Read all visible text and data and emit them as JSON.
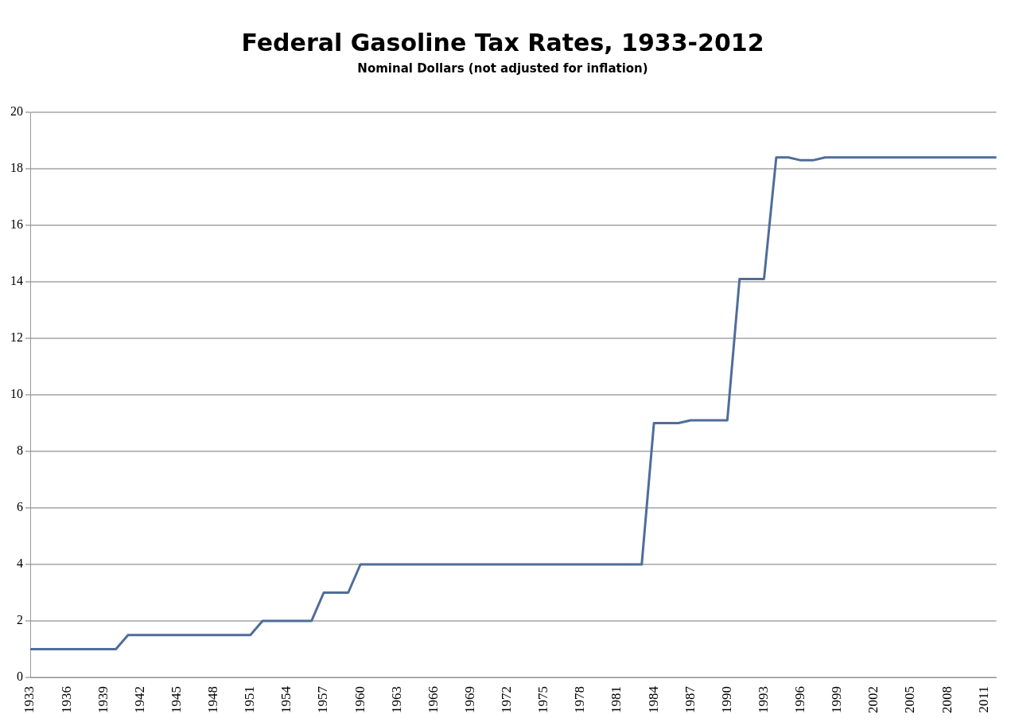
{
  "chart_data": {
    "type": "line",
    "title": "Federal Gasoline Tax Rates, 1933-2012",
    "subtitle": "Nominal Dollars (not adjusted for inflation)",
    "categories": [
      "1933",
      null,
      null,
      "1936",
      null,
      null,
      "1939",
      null,
      null,
      "1942",
      null,
      null,
      "1945",
      null,
      null,
      "1948",
      null,
      null,
      "1951",
      null,
      null,
      "1954",
      null,
      null,
      "1957",
      null,
      null,
      "1960",
      null,
      null,
      "1963",
      null,
      null,
      "1966",
      null,
      null,
      "1969",
      null,
      null,
      "1972",
      null,
      null,
      "1975",
      null,
      null,
      "1978",
      null,
      null,
      "1981",
      null,
      null,
      "1984",
      null,
      null,
      "1987",
      null,
      null,
      "1990",
      null,
      null,
      "1993",
      null,
      null,
      "1996",
      null,
      null,
      "1999",
      null,
      null,
      "2002",
      null,
      null,
      "2005",
      null,
      null,
      "2008",
      null,
      null,
      "2011",
      null
    ],
    "series": [
      {
        "color": "#4f6d9a",
        "values": [
          1,
          1,
          1,
          1,
          1,
          1,
          1,
          1,
          1.5,
          1.5,
          1.5,
          1.5,
          1.5,
          1.5,
          1.5,
          1.5,
          1.5,
          1.5,
          1.5,
          2,
          2,
          2,
          2,
          2,
          3,
          3,
          3,
          4,
          4,
          4,
          4,
          4,
          4,
          4,
          4,
          4,
          4,
          4,
          4,
          4,
          4,
          4,
          4,
          4,
          4,
          4,
          4,
          4,
          4,
          4,
          4,
          9,
          9,
          9,
          9.1,
          9.1,
          9.1,
          9.1,
          14.1,
          14.1,
          14.1,
          18.4,
          18.4,
          18.3,
          18.3,
          18.4,
          18.4,
          18.4,
          18.4,
          18.4,
          18.4,
          18.4,
          18.4,
          18.4,
          18.4,
          18.4,
          18.4,
          18.4,
          18.4,
          18.4
        ]
      }
    ],
    "ylim": [
      0,
      20
    ],
    "yticks": [
      0,
      2,
      4,
      6,
      8,
      10,
      12,
      14,
      16,
      18,
      20
    ],
    "grid": "y",
    "legend": false,
    "marker": "none",
    "line_style": "solid"
  }
}
